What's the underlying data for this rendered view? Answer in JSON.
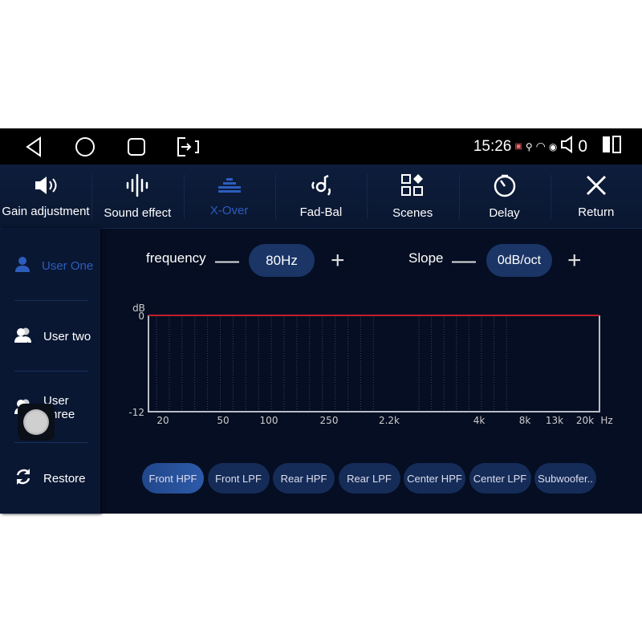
{
  "status": {
    "time": "15:26",
    "volume": "0"
  },
  "toolbar": {
    "tabs": [
      {
        "label": "Gain adjustment",
        "icon": "speaker-icon"
      },
      {
        "label": "Sound effect",
        "icon": "waveform-icon"
      },
      {
        "label": "X-Over",
        "icon": "equalizer-icon",
        "active": true
      },
      {
        "label": "Fad-Bal",
        "icon": "fader-balance-icon"
      },
      {
        "label": "Scenes",
        "icon": "scenes-grid-icon"
      },
      {
        "label": "Delay",
        "icon": "timer-icon"
      },
      {
        "label": "Return",
        "icon": "close-icon"
      }
    ]
  },
  "sidebar": {
    "items": [
      {
        "label": "User One",
        "icon": "user-icon",
        "active": true
      },
      {
        "label": "User two",
        "icon": "users-icon"
      },
      {
        "label": "User Three",
        "icon": "users-icon"
      },
      {
        "label": "Restore",
        "icon": "refresh-icon"
      }
    ]
  },
  "controls": {
    "frequency_label": "frequency",
    "frequency_value": "80Hz",
    "slope_label": "Slope",
    "slope_value": "0dB/oct",
    "minus": "—",
    "plus": "+"
  },
  "chart_data": {
    "type": "line",
    "ylabel": "dB",
    "xunit": "Hz",
    "ylim": [
      -12,
      0
    ],
    "yticks": [
      "0",
      "-12"
    ],
    "xticks": [
      "20",
      "50",
      "100",
      "250",
      "2.2k",
      "4k",
      "8k",
      "13k",
      "20k"
    ],
    "series": [
      {
        "values": [
          0,
          0,
          0,
          0,
          0,
          0,
          0,
          0,
          0
        ],
        "color": "#c0202a"
      }
    ],
    "grid": true
  },
  "filters": [
    {
      "label": "Front HPF",
      "active": true
    },
    {
      "label": "Front LPF"
    },
    {
      "label": "Rear HPF"
    },
    {
      "label": "Rear LPF"
    },
    {
      "label": "Center HPF"
    },
    {
      "label": "Center LPF"
    },
    {
      "label": "Subwoofer.."
    }
  ],
  "colors": {
    "accent": "#2c5dbd",
    "curve": "#c0202a",
    "background": "#050e22"
  }
}
